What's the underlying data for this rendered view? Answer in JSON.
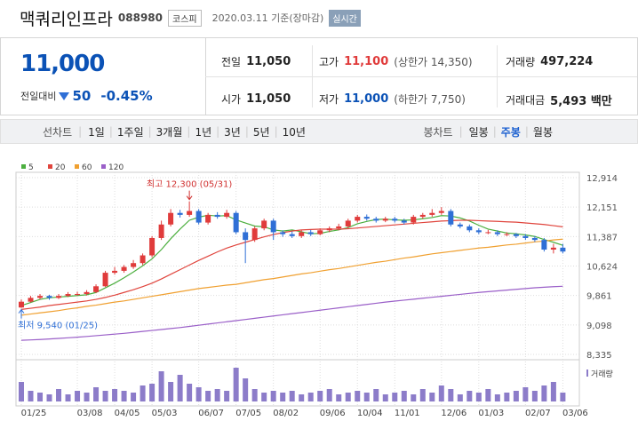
{
  "header": {
    "title": "맥쿼리인프라",
    "code": "088980",
    "market": "코스피",
    "date": "2020.03.11 기준(장마감)",
    "realtime": "실시간"
  },
  "quote": {
    "price": "11,000",
    "change_label": "전일대비",
    "change": "50",
    "change_pct": "-0.45%",
    "stats": [
      [
        {
          "label": "전일",
          "value": "11,050"
        },
        {
          "label": "고가",
          "value": "11,100",
          "note": "(상한가 14,350)"
        },
        {
          "label": "거래량",
          "value": "497,224"
        }
      ],
      [
        {
          "label": "시가",
          "value": "11,050"
        },
        {
          "label": "저가",
          "value": "11,000",
          "note": "(하한가 7,750)"
        },
        {
          "label": "거래대금",
          "value": "5,493 백만"
        }
      ]
    ]
  },
  "tabs": {
    "line_label": "선차트",
    "periods": [
      "1일",
      "1주일",
      "3개월",
      "1년",
      "3년",
      "5년",
      "10년"
    ],
    "candle_label": "봉차트",
    "candle_periods": [
      "일봉",
      "주봉",
      "월봉"
    ],
    "candle_selected": 1
  },
  "chart_data": {
    "type": "candlestick",
    "categories": [
      "01/25",
      null,
      null,
      null,
      null,
      null,
      "03/08",
      null,
      null,
      null,
      "04/05",
      null,
      null,
      null,
      "05/03",
      null,
      null,
      null,
      null,
      "06/07",
      null,
      null,
      null,
      "07/05",
      null,
      null,
      null,
      "08/02",
      null,
      null,
      null,
      null,
      "09/06",
      null,
      null,
      null,
      "10/04",
      null,
      null,
      null,
      "11/01",
      null,
      null,
      null,
      null,
      "12/06",
      null,
      null,
      null,
      "01/03",
      null,
      null,
      null,
      null,
      "02/07",
      null,
      null,
      null,
      "03/06"
    ],
    "candles": {
      "up_color": "#e03b3b",
      "down_color": "#2f6fd6",
      "open": [
        9550,
        9700,
        9800,
        9850,
        9800,
        9850,
        9900,
        9900,
        9950,
        10100,
        10450,
        10500,
        10600,
        10700,
        10900,
        11350,
        11700,
        12000,
        11950,
        12050,
        11750,
        11950,
        11900,
        12000,
        11500,
        11300,
        11600,
        11800,
        11500,
        11450,
        11400,
        11500,
        11450,
        11550,
        11600,
        11650,
        11800,
        11900,
        11850,
        11800,
        11850,
        11800,
        11750,
        11900,
        11950,
        12000,
        12050,
        11700,
        11650,
        11550,
        11500,
        11500,
        11450,
        11450,
        11400,
        11350,
        11300,
        11050,
        11100
      ],
      "high": [
        9760,
        9850,
        9900,
        9880,
        9900,
        9950,
        9960,
        10000,
        10150,
        10500,
        10600,
        10650,
        10780,
        10950,
        11400,
        11800,
        12100,
        12080,
        12300,
        12100,
        12000,
        12020,
        12080,
        12050,
        11600,
        11650,
        11850,
        11850,
        11550,
        11520,
        11550,
        11560,
        11600,
        11650,
        11720,
        11850,
        11950,
        11960,
        11900,
        11900,
        11900,
        11850,
        11950,
        12000,
        12100,
        12150,
        12100,
        11750,
        11700,
        11600,
        11560,
        11550,
        11500,
        11480,
        11450,
        11400,
        11350,
        11200,
        11200
      ],
      "low": [
        9540,
        9680,
        9760,
        9750,
        9770,
        9820,
        9850,
        9860,
        9920,
        10080,
        10400,
        10450,
        10550,
        10650,
        10850,
        11300,
        11650,
        11880,
        11900,
        11700,
        11700,
        11850,
        11850,
        11450,
        10700,
        11250,
        11550,
        11300,
        11380,
        11350,
        11350,
        11400,
        11420,
        11500,
        11550,
        11600,
        11750,
        11800,
        11750,
        11760,
        11750,
        11700,
        11700,
        11850,
        11900,
        11950,
        11650,
        11600,
        11500,
        11450,
        11450,
        11400,
        11400,
        11350,
        11300,
        11250,
        11000,
        10950,
        10950
      ],
      "close": [
        9700,
        9800,
        9850,
        9800,
        9850,
        9900,
        9900,
        9950,
        10100,
        10450,
        10500,
        10600,
        10700,
        10900,
        11350,
        11700,
        12000,
        11950,
        12050,
        11750,
        11950,
        11900,
        12000,
        11500,
        11300,
        11600,
        11800,
        11500,
        11450,
        11400,
        11500,
        11450,
        11550,
        11600,
        11650,
        11800,
        11900,
        11850,
        11800,
        11850,
        11800,
        11750,
        11900,
        11950,
        12000,
        12050,
        11700,
        11650,
        11550,
        11500,
        11500,
        11450,
        11450,
        11400,
        11350,
        11300,
        11050,
        11100,
        11000
      ]
    },
    "series": [
      {
        "name": "5",
        "color": "#4caf3f",
        "values": [
          9600,
          9680,
          9760,
          9800,
          9820,
          9840,
          9860,
          9880,
          9940,
          10060,
          10180,
          10320,
          10470,
          10630,
          10810,
          11050,
          11330,
          11580,
          11810,
          11890,
          11940,
          11920,
          11930,
          11820,
          11740,
          11660,
          11640,
          11560,
          11530,
          11560,
          11510,
          11460,
          11470,
          11520,
          11560,
          11620,
          11720,
          11780,
          11830,
          11840,
          11820,
          11810,
          11820,
          11850,
          11880,
          11930,
          11920,
          11870,
          11790,
          11680,
          11580,
          11530,
          11480,
          11460,
          11430,
          11390,
          11310,
          11240,
          11160
        ]
      },
      {
        "name": "20",
        "color": "#e0453d",
        "values": [
          9500,
          9530,
          9560,
          9600,
          9630,
          9660,
          9690,
          9720,
          9760,
          9810,
          9870,
          9940,
          10010,
          10090,
          10180,
          10290,
          10410,
          10530,
          10650,
          10770,
          10880,
          10990,
          11090,
          11170,
          11240,
          11310,
          11380,
          11440,
          11490,
          11530,
          11560,
          11570,
          11580,
          11580,
          11580,
          11590,
          11610,
          11630,
          11650,
          11670,
          11690,
          11710,
          11730,
          11750,
          11770,
          11790,
          11800,
          11810,
          11810,
          11800,
          11790,
          11780,
          11770,
          11760,
          11740,
          11720,
          11700,
          11670,
          11640
        ]
      },
      {
        "name": "60",
        "color": "#f0a030",
        "values": [
          9350,
          9380,
          9410,
          9440,
          9470,
          9510,
          9540,
          9580,
          9610,
          9650,
          9690,
          9720,
          9760,
          9800,
          9840,
          9880,
          9920,
          9960,
          10000,
          10040,
          10070,
          10100,
          10130,
          10150,
          10190,
          10230,
          10270,
          10300,
          10340,
          10380,
          10420,
          10450,
          10490,
          10530,
          10560,
          10600,
          10640,
          10680,
          10720,
          10750,
          10790,
          10830,
          10860,
          10900,
          10940,
          10970,
          11000,
          11030,
          11060,
          11090,
          11110,
          11140,
          11170,
          11190,
          11220,
          11250,
          11270,
          11300,
          11320
        ]
      },
      {
        "name": "120",
        "color": "#9a5fc8",
        "values": [
          8700,
          8710,
          8720,
          8735,
          8750,
          8765,
          8780,
          8800,
          8820,
          8840,
          8860,
          8880,
          8905,
          8930,
          8955,
          8980,
          9005,
          9030,
          9060,
          9090,
          9120,
          9150,
          9180,
          9210,
          9240,
          9270,
          9300,
          9330,
          9360,
          9390,
          9420,
          9450,
          9480,
          9510,
          9540,
          9570,
          9600,
          9630,
          9660,
          9690,
          9715,
          9740,
          9765,
          9790,
          9815,
          9840,
          9865,
          9890,
          9915,
          9940,
          9960,
          9980,
          10000,
          10020,
          10040,
          10060,
          10075,
          10090,
          10100
        ]
      }
    ],
    "volume": {
      "name": "거래량",
      "color": "#8c7cc9",
      "ylim": [
        0,
        42
      ],
      "values": [
        22,
        12,
        10,
        8,
        14,
        8,
        12,
        10,
        16,
        12,
        14,
        12,
        10,
        18,
        20,
        34,
        22,
        30,
        20,
        16,
        12,
        14,
        12,
        38,
        26,
        14,
        10,
        12,
        10,
        12,
        8,
        10,
        12,
        14,
        8,
        10,
        12,
        10,
        14,
        8,
        10,
        12,
        8,
        14,
        10,
        18,
        14,
        8,
        12,
        10,
        14,
        8,
        10,
        12,
        16,
        12,
        18,
        22,
        10
      ]
    },
    "ylim": [
      8335,
      12914
    ],
    "yticks": [
      {
        "value": 12914,
        "label": "12,914"
      },
      {
        "value": 12151,
        "label": "12,151"
      },
      {
        "value": 11387,
        "label": "11,387"
      },
      {
        "value": 10624,
        "label": "10,624"
      },
      {
        "value": 9861,
        "label": "9,861"
      },
      {
        "value": 9098,
        "label": "9,098"
      },
      {
        "value": 8335,
        "label": "8,335"
      }
    ],
    "grid": true,
    "annotations": {
      "high_label": "최고 12,300 (05/31)",
      "low_label": "최저 9,540 (01/25)"
    }
  }
}
